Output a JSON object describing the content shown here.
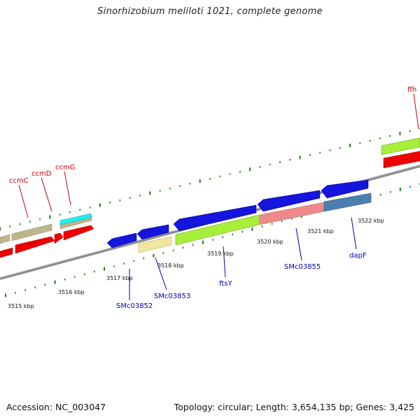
{
  "title": "Sinorhizobium meliloti 1021, complete genome",
  "footer": {
    "accession": "Accession: NC_003047",
    "topology": "Topology: circular; Length: 3,654,135 bp; Genes: 3,425"
  },
  "scale_labels": [
    "3515 kbp",
    "3516 kbp",
    "3517 kbp",
    "3518 kbp",
    "3519 kbp",
    "3520 kbp",
    "3521 kbp",
    "3522 kbp"
  ],
  "top_gene_labels": [
    "ccmC",
    "ccmD",
    "ccmG",
    "ffh"
  ],
  "bottom_gene_labels": [
    "SMc03852",
    "SMc03853",
    "ftsY",
    "SMc03855",
    "dapF"
  ],
  "colors": {
    "backbone": "#8a8a8a",
    "tick": "#1a7a1a",
    "red": "#ee0000",
    "khaki": "#bdb68a",
    "cyan": "#22eeee",
    "blue": "#1515dd",
    "lime": "#a8ee3a",
    "pink": "#ee8a8a",
    "steel": "#4a7fb0",
    "paleyellow": "#f0e6a0"
  }
}
